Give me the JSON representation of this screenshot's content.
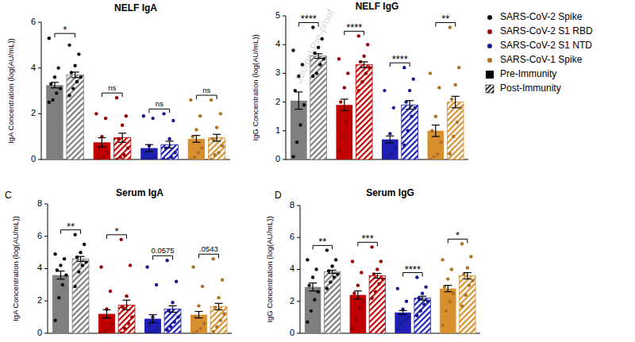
{
  "watermark": "Journal Pre-proof",
  "chart_data": [
    {
      "type": "bar",
      "title": "NELF IgA",
      "y_label": "IgA Concentration (log(AU/mL))",
      "categories": [
        "SARS-CoV-2 Spike",
        "SARS-CoV-2 S1 RBD",
        "SARS-CoV-2 S1 NTD",
        "SARS-CoV-1 Spike"
      ],
      "colors": [
        "#7f7f7f",
        "#c00000",
        "#1f1fb4",
        "#d8902f"
      ],
      "ylim": [
        0,
        6
      ],
      "yticks": [
        0,
        2,
        4,
        6
      ],
      "grid": false,
      "tick_labels": "y",
      "legend": "right",
      "annotations": [
        "*",
        "ns",
        "ns",
        "ns"
      ],
      "series": [
        {
          "name": "Pre-Immunity",
          "values": [
            3.25,
            0.75,
            0.5,
            0.9
          ],
          "errors": [
            0.12,
            0.2,
            0.15,
            0.15
          ],
          "points": [
            [
              5.3,
              4.0,
              3.6,
              3.3,
              3.1,
              2.9,
              2.6,
              2.5
            ],
            [
              2.0,
              1.8,
              1.0,
              0.5,
              0.3,
              0.1,
              0.0,
              0.0
            ],
            [
              1.9,
              1.8,
              0.6,
              0.3,
              0.1,
              0.0,
              0.0,
              0.0
            ],
            [
              2.6,
              1.9,
              1.3,
              1.0,
              0.5,
              0.3,
              0.1,
              0.0
            ]
          ]
        },
        {
          "name": "Post-Immunity",
          "values": [
            3.7,
            0.95,
            0.65,
            0.95
          ],
          "errors": [
            0.12,
            0.2,
            0.15,
            0.15
          ],
          "points": [
            [
              5.0,
              4.6,
              4.1,
              3.8,
              3.6,
              3.4,
              3.1,
              2.8
            ],
            [
              2.7,
              1.9,
              1.5,
              0.9,
              0.5,
              0.2,
              0.1,
              0.0
            ],
            [
              2.0,
              1.7,
              0.9,
              0.5,
              0.3,
              0.1,
              0.0,
              0.0
            ],
            [
              2.6,
              2.0,
              1.4,
              0.9,
              0.6,
              0.3,
              0.2,
              0.0
            ]
          ]
        }
      ]
    },
    {
      "type": "bar",
      "title": "NELF IgG",
      "y_label": "IgG Concentration (log(AU/mL))",
      "categories": [
        "SARS-CoV-2 Spike",
        "SARS-CoV-2 S1 RBD",
        "SARS-CoV-2 S1 NTD",
        "SARS-CoV-1 Spike"
      ],
      "colors": [
        "#7f7f7f",
        "#c00000",
        "#1f1fb4",
        "#d8902f"
      ],
      "ylim": [
        0,
        5
      ],
      "yticks": [
        0,
        1,
        2,
        3,
        4,
        5
      ],
      "grid": false,
      "tick_labels": "y",
      "annotations": [
        "****",
        "****",
        "****",
        "**"
      ],
      "series": [
        {
          "name": "Pre-Immunity",
          "values": [
            2.05,
            1.9,
            0.7,
            1.0
          ],
          "errors": [
            0.3,
            0.2,
            0.12,
            0.2
          ],
          "points": [
            [
              3.8,
              3.3,
              2.9,
              2.4,
              1.9,
              1.2,
              0.6,
              0.1
            ],
            [
              3.5,
              3.0,
              2.5,
              2.0,
              1.8,
              1.3,
              0.8,
              0.3
            ],
            [
              2.4,
              1.8,
              0.9,
              0.6,
              0.4,
              0.2,
              0.1,
              0.0
            ],
            [
              3.0,
              2.5,
              1.5,
              1.0,
              0.6,
              0.2,
              0.1,
              0.0
            ]
          ]
        },
        {
          "name": "Post-Immunity",
          "values": [
            3.6,
            3.3,
            1.9,
            2.0
          ],
          "errors": [
            0.08,
            0.1,
            0.15,
            0.2
          ],
          "points": [
            [
              4.6,
              4.2,
              3.9,
              3.7,
              3.5,
              3.3,
              3.0,
              2.9
            ],
            [
              4.3,
              4.0,
              3.6,
              3.4,
              3.2,
              3.0,
              2.7,
              2.4
            ],
            [
              3.2,
              2.8,
              2.4,
              2.0,
              1.8,
              1.5,
              1.0,
              0.5
            ],
            [
              4.6,
              3.2,
              2.6,
              2.1,
              1.8,
              1.3,
              0.8,
              0.2
            ]
          ]
        }
      ]
    },
    {
      "type": "bar",
      "title": "Serum IgA",
      "panel_label": "C",
      "y_label": "IgA Concentration (log(AU/mL))",
      "categories": [
        "SARS-CoV-2 Spike",
        "SARS-CoV-2 S1 RBD",
        "SARS-CoV-2 S1 NTD",
        "SARS-CoV-1 Spike"
      ],
      "colors": [
        "#7f7f7f",
        "#c00000",
        "#1f1fb4",
        "#d8902f"
      ],
      "ylim": [
        0,
        8
      ],
      "yticks": [
        0,
        2,
        4,
        6,
        8
      ],
      "grid": false,
      "tick_labels": "y",
      "annotations": [
        "**",
        "*",
        "0.0575",
        ".0543"
      ],
      "series": [
        {
          "name": "Pre-Immunity",
          "values": [
            3.6,
            1.2,
            0.9,
            1.15
          ],
          "errors": [
            0.25,
            0.25,
            0.25,
            0.2
          ],
          "points": [
            [
              4.9,
              4.6,
              4.2,
              3.9,
              3.6,
              3.0,
              2.2,
              0.8
            ],
            [
              4.1,
              2.6,
              1.5,
              1.0,
              0.6,
              0.3,
              0.1,
              0.0
            ],
            [
              4.1,
              3.0,
              1.0,
              0.5,
              0.3,
              0.1,
              0.0,
              0.0
            ],
            [
              4.1,
              2.9,
              1.7,
              1.0,
              0.6,
              0.3,
              0.1,
              0.0
            ]
          ]
        },
        {
          "name": "Post-Immunity",
          "values": [
            4.6,
            1.75,
            1.5,
            1.65
          ],
          "errors": [
            0.15,
            0.3,
            0.2,
            0.2
          ],
          "points": [
            [
              6.1,
              5.5,
              5.0,
              4.7,
              4.4,
              4.2,
              3.8,
              2.9
            ],
            [
              5.8,
              4.2,
              2.3,
              1.6,
              1.0,
              0.6,
              0.3,
              0.0
            ],
            [
              4.5,
              3.2,
              1.9,
              1.4,
              1.0,
              0.7,
              0.4,
              0.2
            ],
            [
              4.6,
              3.3,
              2.2,
              1.6,
              1.2,
              0.8,
              0.4,
              0.1
            ]
          ]
        }
      ]
    },
    {
      "type": "bar",
      "title": "Serum IgG",
      "panel_label": "D",
      "y_label": "IgG Concentration (log(AU/mL))",
      "categories": [
        "SARS-CoV-2 Spike",
        "SARS-CoV-2 S1 RBD",
        "SARS-CoV-2 S1 NTD",
        "SARS-CoV-1 Spike"
      ],
      "colors": [
        "#7f7f7f",
        "#c00000",
        "#1f1fb4",
        "#d8902f"
      ],
      "ylim": [
        0,
        8
      ],
      "yticks": [
        0,
        2,
        4,
        6,
        8
      ],
      "grid": false,
      "tick_labels": "y",
      "annotations": [
        "**",
        "***",
        "****",
        "*"
      ],
      "series": [
        {
          "name": "Pre-Immunity",
          "values": [
            2.9,
            2.4,
            1.3,
            2.8
          ],
          "errors": [
            0.25,
            0.25,
            0.12,
            0.2
          ],
          "points": [
            [
              4.6,
              4.0,
              3.5,
              3.0,
              2.6,
              2.1,
              1.4,
              0.7
            ],
            [
              4.5,
              3.8,
              3.0,
              2.5,
              2.0,
              1.6,
              0.9,
              0.3
            ],
            [
              2.8,
              2.0,
              1.5,
              1.2,
              1.0,
              0.8,
              0.6,
              0.3
            ],
            [
              4.6,
              4.0,
              3.4,
              2.9,
              2.5,
              2.0,
              1.4,
              0.5
            ]
          ]
        },
        {
          "name": "Post-Immunity",
          "values": [
            3.85,
            3.6,
            2.2,
            3.6
          ],
          "errors": [
            0.1,
            0.15,
            0.12,
            0.2
          ],
          "points": [
            [
              5.2,
              4.6,
              4.2,
              3.9,
              3.7,
              3.5,
              3.2,
              2.8
            ],
            [
              5.4,
              4.5,
              4.0,
              3.7,
              3.4,
              3.1,
              2.6,
              2.2
            ],
            [
              3.5,
              2.9,
              2.5,
              2.2,
              2.0,
              1.8,
              1.4,
              1.1
            ],
            [
              5.6,
              4.8,
              4.1,
              3.7,
              3.3,
              3.0,
              2.4,
              1.7
            ]
          ]
        }
      ]
    }
  ]
}
